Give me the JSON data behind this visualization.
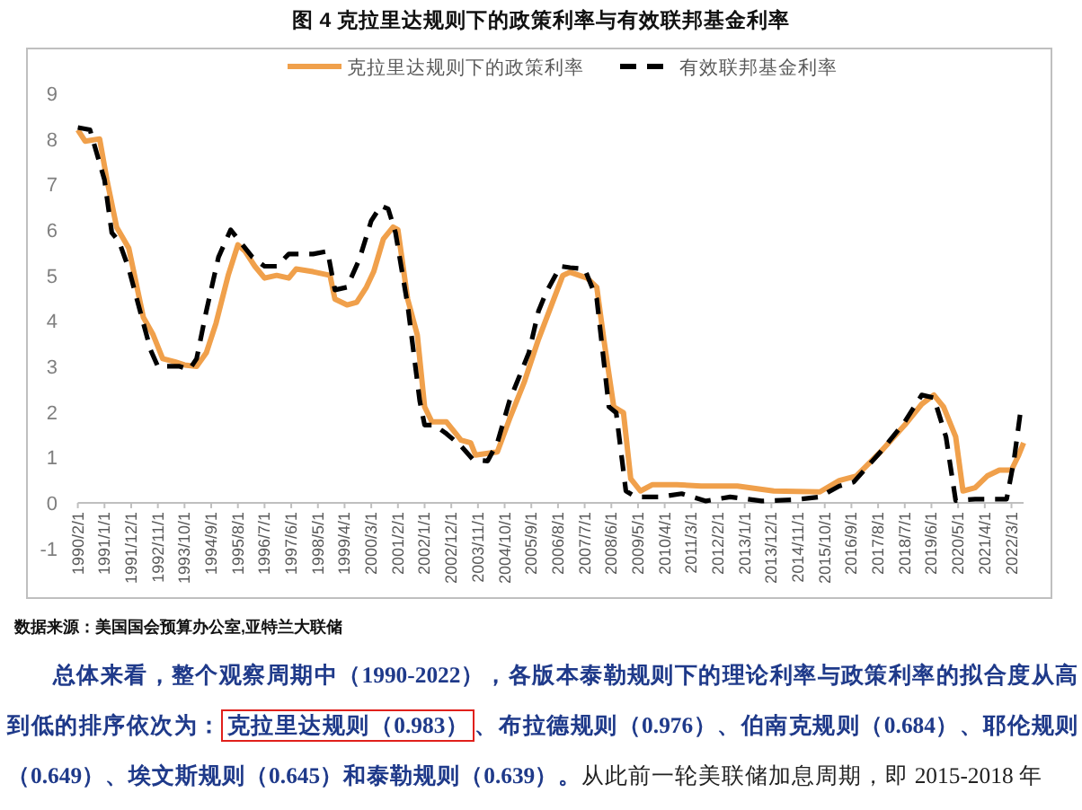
{
  "chart_data": {
    "type": "line",
    "title": "图 4  克拉里达规则下的政策利率与有效联邦基金利率",
    "legend": "top",
    "xlim": [
      "1990-02",
      "2022-08"
    ],
    "ylim": [
      -1,
      9
    ],
    "yticks": [
      -1,
      0,
      1,
      2,
      3,
      4,
      5,
      6,
      7,
      8,
      9
    ],
    "xticks": [
      {
        "value": "1990-02",
        "label": "1990/2/1"
      },
      {
        "value": "1991-01",
        "label": "1991/1/1"
      },
      {
        "value": "1991-12",
        "label": "1991/12/1"
      },
      {
        "value": "1992-11",
        "label": "1992/11/1"
      },
      {
        "value": "1993-10",
        "label": "1993/10/1"
      },
      {
        "value": "1994-09",
        "label": "1994/9/1"
      },
      {
        "value": "1995-08",
        "label": "1995/8/1"
      },
      {
        "value": "1996-07",
        "label": "1996/7/1"
      },
      {
        "value": "1997-06",
        "label": "1997/6/1"
      },
      {
        "value": "1998-05",
        "label": "1998/5/1"
      },
      {
        "value": "1999-04",
        "label": "1999/4/1"
      },
      {
        "value": "2000-03",
        "label": "2000/3/1"
      },
      {
        "value": "2001-02",
        "label": "2001/2/1"
      },
      {
        "value": "2002-01",
        "label": "2002/1/1"
      },
      {
        "value": "2002-12",
        "label": "2002/12/1"
      },
      {
        "value": "2003-11",
        "label": "2003/11/1"
      },
      {
        "value": "2004-10",
        "label": "2004/10/1"
      },
      {
        "value": "2005-09",
        "label": "2005/9/1"
      },
      {
        "value": "2006-08",
        "label": "2006/8/1"
      },
      {
        "value": "2007-07",
        "label": "2007/7/1"
      },
      {
        "value": "2008-06",
        "label": "2008/6/1"
      },
      {
        "value": "2009-05",
        "label": "2009/5/1"
      },
      {
        "value": "2010-04",
        "label": "2010/4/1"
      },
      {
        "value": "2011-03",
        "label": "2011/3/1"
      },
      {
        "value": "2012-02",
        "label": "2012/2/1"
      },
      {
        "value": "2013-01",
        "label": "2013/1/1"
      },
      {
        "value": "2013-12",
        "label": "2013/12/1"
      },
      {
        "value": "2014-11",
        "label": "2014/11/1"
      },
      {
        "value": "2015-10",
        "label": "2015/10/1"
      },
      {
        "value": "2016-09",
        "label": "2016/9/1"
      },
      {
        "value": "2017-08",
        "label": "2017/8/1"
      },
      {
        "value": "2018-07",
        "label": "2018/7/1"
      },
      {
        "value": "2019-06",
        "label": "2019/6/1"
      },
      {
        "value": "2020-05",
        "label": "2020/5/1"
      },
      {
        "value": "2021-04",
        "label": "2021/4/1"
      },
      {
        "value": "2022-03",
        "label": "2022/3/1"
      }
    ],
    "series": [
      {
        "name": "克拉里达规则下的政策利率",
        "color": "#f0a04b",
        "line_style": "solid",
        "x": [
          "1990-02",
          "1990-05",
          "1990-11",
          "1991-02",
          "1991-06",
          "1991-11",
          "1992-05",
          "1992-09",
          "1993-01",
          "1993-06",
          "1993-10",
          "1994-03",
          "1994-07",
          "1994-11",
          "1995-04",
          "1995-08",
          "1995-11",
          "1996-03",
          "1996-07",
          "1996-12",
          "1997-05",
          "1997-08",
          "1998-03",
          "1998-10",
          "1998-12",
          "1999-05",
          "1999-09",
          "2000-01",
          "2000-04",
          "2000-08",
          "2000-12",
          "2001-02",
          "2001-06",
          "2001-10",
          "2002-01",
          "2002-04",
          "2002-10",
          "2003-04",
          "2003-08",
          "2003-10",
          "2004-07",
          "2004-12",
          "2005-06",
          "2005-12",
          "2006-10",
          "2007-01",
          "2007-08",
          "2007-12",
          "2008-03",
          "2008-07",
          "2008-11",
          "2009-02",
          "2009-06",
          "2009-11",
          "2010-09",
          "2011-07",
          "2012-10",
          "2014-01",
          "2015-08",
          "2016-04",
          "2016-11",
          "2017-09",
          "2018-07",
          "2019-02",
          "2019-07",
          "2019-11",
          "2020-04",
          "2020-07",
          "2020-12",
          "2021-05",
          "2021-10",
          "2022-03",
          "2022-06",
          "2022-08"
        ],
        "values": [
          8.2,
          7.95,
          8.0,
          7.1,
          6.06,
          5.6,
          4.08,
          3.7,
          3.17,
          3.1,
          3.03,
          3.0,
          3.3,
          3.95,
          5.0,
          5.67,
          5.53,
          5.2,
          4.94,
          5.0,
          4.94,
          5.14,
          5.08,
          5.0,
          4.48,
          4.35,
          4.41,
          4.74,
          5.08,
          5.8,
          6.06,
          6.0,
          4.48,
          3.69,
          2.11,
          1.78,
          1.78,
          1.38,
          1.32,
          1.05,
          1.12,
          1.84,
          2.64,
          3.6,
          5.0,
          5.07,
          4.94,
          4.74,
          3.56,
          2.11,
          1.98,
          0.53,
          0.26,
          0.4,
          0.4,
          0.37,
          0.37,
          0.26,
          0.24,
          0.49,
          0.59,
          1.12,
          1.71,
          2.17,
          2.37,
          2.11,
          1.45,
          0.26,
          0.33,
          0.59,
          0.72,
          0.72,
          1.05,
          1.32
        ]
      },
      {
        "name": "有效联邦基金利率",
        "color": "#000000",
        "line_style": "dashed",
        "x": [
          "1990-02",
          "1990-07",
          "1991-01",
          "1991-04",
          "1991-07",
          "1991-11",
          "1992-04",
          "1992-08",
          "1992-11",
          "1993-08",
          "1993-12",
          "1994-03",
          "1994-07",
          "1994-12",
          "1995-05",
          "1995-08",
          "1996-02",
          "1996-07",
          "1996-12",
          "1997-05",
          "1998-03",
          "1998-09",
          "1998-12",
          "1999-05",
          "1999-10",
          "2000-03",
          "2000-07",
          "2000-10",
          "2001-01",
          "2001-06",
          "2001-11",
          "2002-01",
          "2002-05",
          "2002-10",
          "2003-04",
          "2003-09",
          "2004-03",
          "2004-07",
          "2004-12",
          "2005-08",
          "2005-12",
          "2006-03",
          "2006-09",
          "2007-01",
          "2007-07",
          "2007-12",
          "2008-05",
          "2008-08",
          "2008-12",
          "2009-04",
          "2010-02",
          "2010-11",
          "2011-09",
          "2012-07",
          "2013-08",
          "2014-10",
          "2015-08",
          "2016-04",
          "2016-10",
          "2017-09",
          "2018-07",
          "2019-02",
          "2019-07",
          "2019-12",
          "2020-04",
          "2020-12",
          "2022-01",
          "2022-04",
          "2022-07"
        ],
        "values": [
          8.25,
          8.2,
          7.1,
          5.94,
          5.74,
          5.15,
          4.15,
          3.36,
          3.0,
          3.0,
          2.93,
          3.17,
          4.22,
          5.4,
          6.0,
          5.8,
          5.4,
          5.2,
          5.2,
          5.47,
          5.47,
          5.53,
          4.68,
          4.74,
          5.34,
          6.2,
          6.53,
          6.46,
          5.94,
          4.35,
          2.24,
          1.71,
          1.71,
          1.52,
          1.25,
          0.95,
          0.92,
          1.32,
          2.24,
          3.3,
          4.22,
          4.61,
          5.2,
          5.17,
          5.14,
          4.48,
          2.11,
          1.98,
          0.26,
          0.13,
          0.13,
          0.2,
          0.04,
          0.13,
          0.04,
          0.07,
          0.13,
          0.37,
          0.46,
          1.12,
          1.78,
          2.37,
          2.31,
          1.45,
          0.05,
          0.08,
          0.08,
          0.92,
          2.11
        ]
      }
    ],
    "annotations": [
      "数据来源：美国国会预算办公室,亚特兰大联储",
      "总体来看，整个观察周期中（1990-2022），各版本泰勒规则下的理论利率与政策利率的拟合度从高到低的排序依次为：",
      "克拉里达规则（0.983）",
      "、布拉德规则（0.976）、伯南克规则（0.684）、耶伦规则（0.649）、埃文斯规则（0.645）和泰勒规则（0.639）。",
      "从此前一轮美联储加息周期，即 2015-2018 年"
    ]
  }
}
